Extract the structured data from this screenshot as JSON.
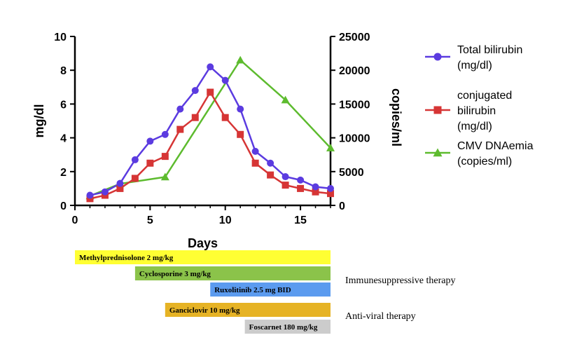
{
  "chart_data": {
    "type": "line",
    "xlabel": "Days",
    "y_left_label": "mg/dl",
    "y_right_label": "copies/ml",
    "xlim": [
      0,
      17
    ],
    "x_ticks": [
      0,
      5,
      10,
      15
    ],
    "y_left_lim": [
      0,
      10
    ],
    "y_left_ticks": [
      0,
      2,
      4,
      6,
      8,
      10
    ],
    "y_right_lim": [
      0,
      25000
    ],
    "y_right_ticks": [
      0,
      5000,
      10000,
      15000,
      20000,
      25000
    ],
    "grid": false,
    "legend_position": "right",
    "series": [
      {
        "name": [
          "Total bilirubin",
          "(mg/dl)"
        ],
        "axis": "left",
        "color": "#5b3be0",
        "marker": "circle",
        "x": [
          1,
          2,
          3,
          4,
          5,
          6,
          7,
          8,
          9,
          10,
          11,
          12,
          13,
          14,
          15,
          16,
          17
        ],
        "y": [
          0.6,
          0.8,
          1.3,
          2.7,
          3.8,
          4.2,
          5.7,
          6.8,
          8.2,
          7.4,
          5.7,
          3.2,
          2.5,
          1.7,
          1.5,
          1.1,
          1.0
        ]
      },
      {
        "name": [
          "conjugated",
          "bilirubin",
          "(mg/dl)"
        ],
        "axis": "left",
        "color": "#d63535",
        "marker": "square",
        "x": [
          1,
          2,
          3,
          4,
          5,
          6,
          7,
          8,
          9,
          10,
          11,
          12,
          13,
          14,
          15,
          16,
          17
        ],
        "y": [
          0.4,
          0.6,
          1.0,
          1.6,
          2.5,
          2.9,
          4.5,
          5.2,
          6.7,
          5.2,
          4.2,
          2.5,
          1.8,
          1.2,
          1.0,
          0.8,
          0.7
        ]
      },
      {
        "name": [
          "CMV DNAemia",
          "(copies/ml)"
        ],
        "axis": "right",
        "color": "#5dbb2e",
        "marker": "triangle",
        "x": [
          1,
          3,
          6,
          11,
          14,
          17
        ],
        "y": [
          1400,
          3200,
          4200,
          21500,
          15600,
          8500
        ]
      }
    ]
  },
  "therapy_bars": [
    {
      "label": "Methylprednisolone 2 mg/kg",
      "start": 0,
      "end": 17,
      "color": "#ffff33"
    },
    {
      "label": "Cyclosporine 3 mg/kg",
      "start": 4,
      "end": 17,
      "color": "#8bc34a"
    },
    {
      "label": "Ruxolitinib 2.5 mg BID",
      "start": 9,
      "end": 17,
      "color": "#5b9bef"
    },
    {
      "label": "Ganciclovir 10 mg/kg",
      "start": 6,
      "end": 17,
      "color": "#e6b325"
    },
    {
      "label": "Foscarnet 180 mg/kg",
      "start": 11.3,
      "end": 17,
      "color": "#cccccc"
    }
  ],
  "therapy_groups": [
    {
      "label": "Immunesuppressive therapy"
    },
    {
      "label": "Anti-viral therapy"
    }
  ]
}
